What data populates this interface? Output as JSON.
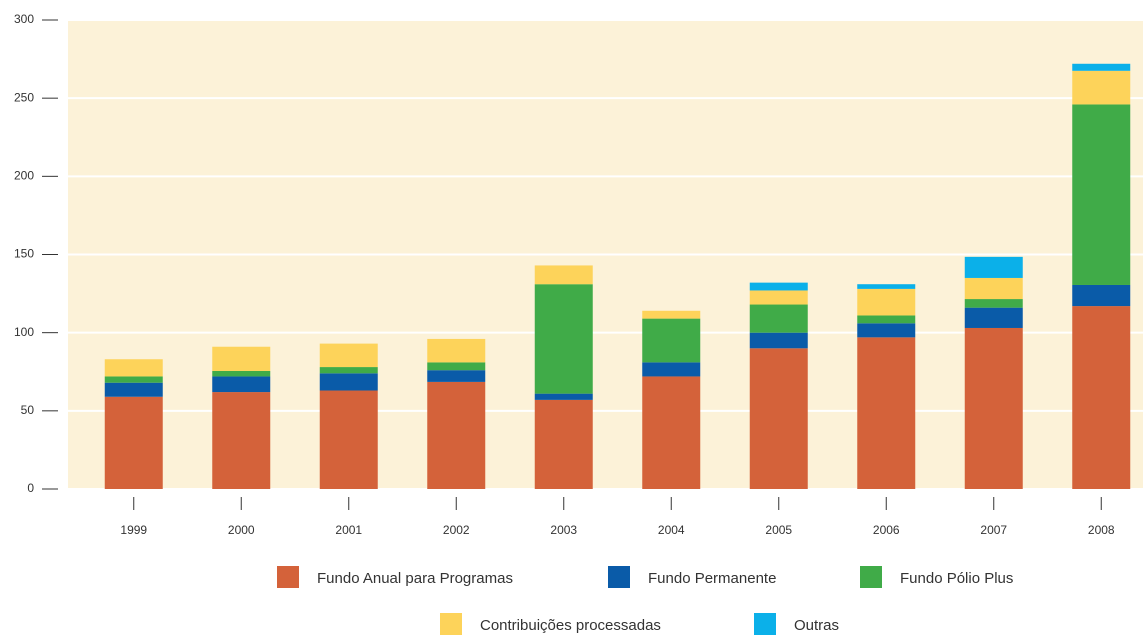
{
  "chart_data": {
    "type": "bar",
    "stacked": true,
    "categories": [
      "1999",
      "2000",
      "2001",
      "2002",
      "2003",
      "2004",
      "2005",
      "2006",
      "2007",
      "2008"
    ],
    "series": [
      {
        "name": "Fundo Anual para Programas",
        "color": "#d4623a",
        "values": [
          59,
          62,
          63,
          68.5,
          57,
          72,
          90,
          97,
          103,
          117
        ]
      },
      {
        "name": "Fundo Permanente",
        "color": "#0a5ba8",
        "values": [
          9,
          10,
          11,
          7.5,
          4,
          9,
          10,
          9,
          13,
          13.5
        ]
      },
      {
        "name": "Fundo Pólio Plus",
        "color": "#40ab48",
        "values": [
          4,
          3.5,
          4,
          5,
          70,
          28,
          18,
          5,
          5.5,
          115.5
        ]
      },
      {
        "name": "Contribuições processadas",
        "color": "#fdd35a",
        "values": [
          11,
          15.5,
          15,
          15,
          12,
          5,
          9,
          17,
          13.5,
          21.5
        ]
      },
      {
        "name": "Outras",
        "color": "#0bb0e9",
        "values": [
          0,
          0,
          0,
          0,
          0,
          0,
          5,
          3,
          13.5,
          4.5
        ]
      }
    ],
    "ylim": [
      0,
      300
    ],
    "yticks": [
      0,
      50,
      100,
      150,
      200,
      250,
      300
    ],
    "grid": true,
    "background": "#fcf2d8"
  }
}
